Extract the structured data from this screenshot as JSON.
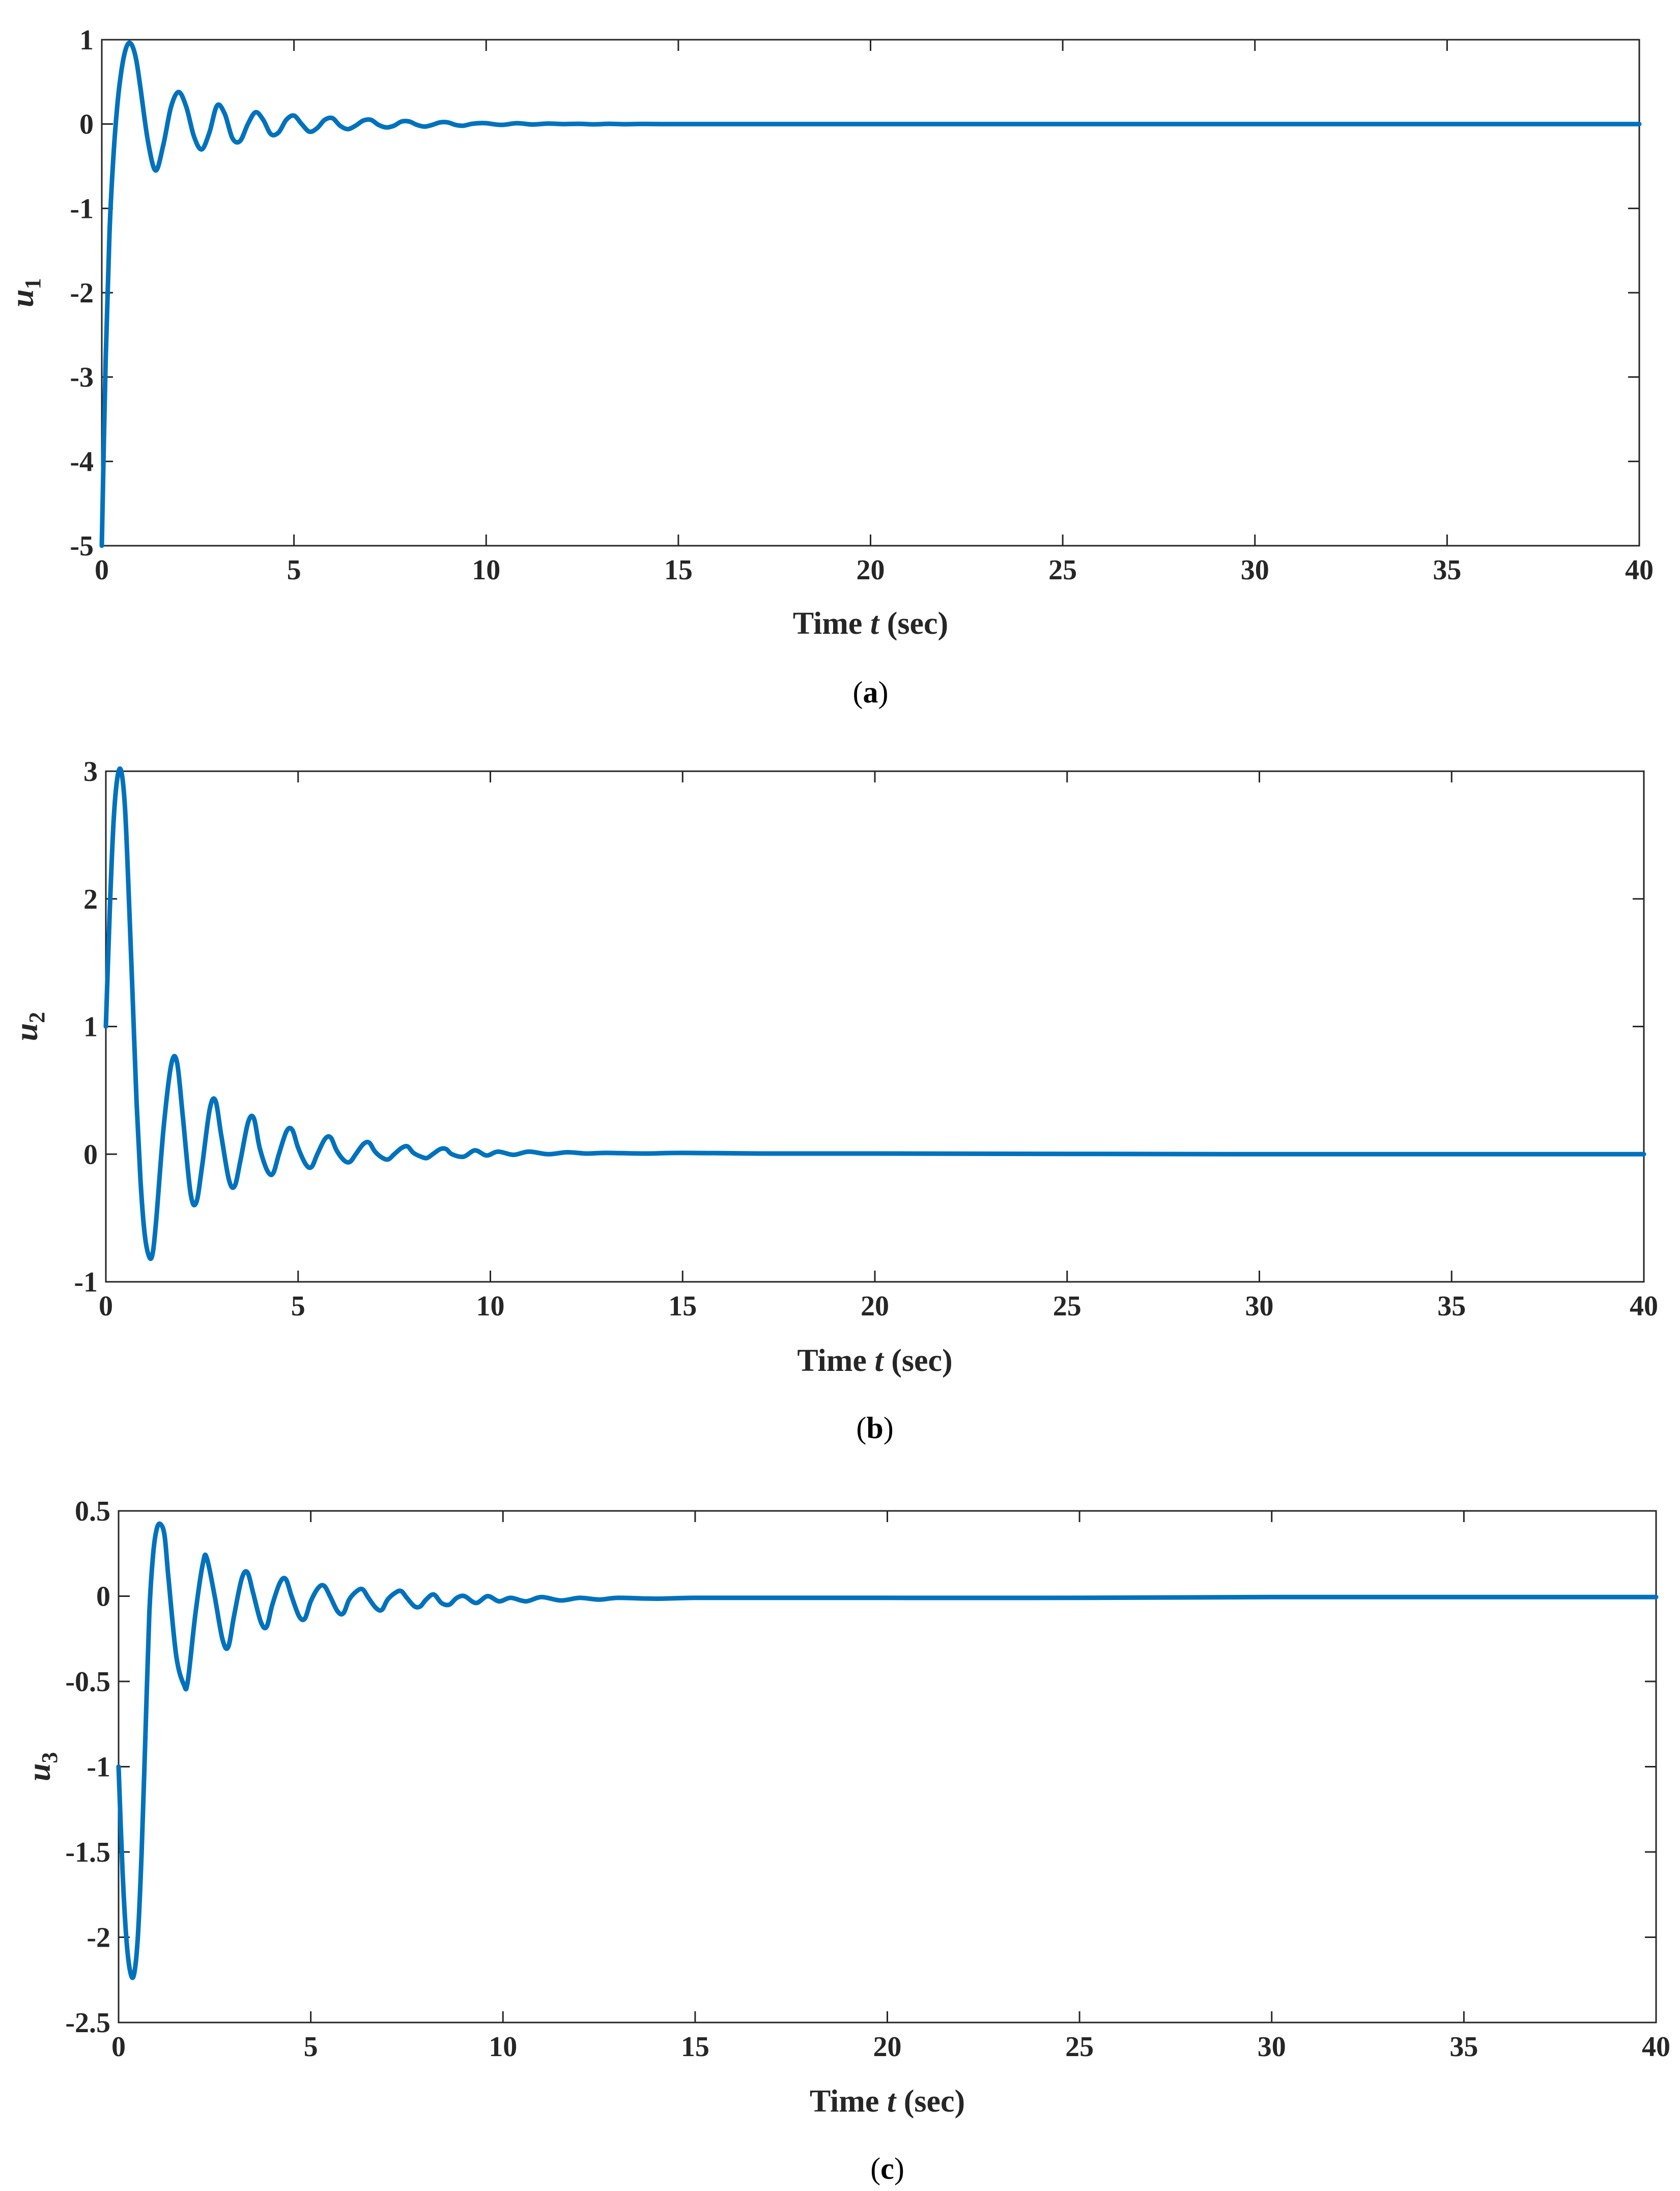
{
  "colors": {
    "line": "#0072BD",
    "axis": "#262626"
  },
  "chart_data": [
    {
      "type": "line",
      "panel": "a",
      "caption": "(a)",
      "xlabel": "Time t (sec)",
      "ylabel": "u1",
      "xlim": [
        0,
        40
      ],
      "ylim": [
        -5,
        1
      ],
      "xticks": [
        "0",
        "5",
        "10",
        "15",
        "20",
        "25",
        "30",
        "35",
        "40"
      ],
      "yticks": [
        "-5",
        "-4",
        "-3",
        "-2",
        "-1",
        "0",
        "1"
      ],
      "grid": false,
      "series": [
        {
          "x": [
            0,
            0.1,
            0.2,
            0.3,
            0.4,
            0.5,
            0.6,
            0.7,
            0.8,
            0.9,
            1.0,
            1.2,
            1.4,
            1.6,
            1.8,
            2.0,
            2.2,
            2.4,
            2.6,
            2.8,
            3.0,
            3.2,
            3.4,
            3.6,
            3.8,
            4.0,
            4.2,
            4.4,
            4.6,
            4.8,
            5.0,
            5.2,
            5.4,
            5.6,
            5.8,
            6.0,
            6.2,
            6.4,
            6.6,
            6.8,
            7.0,
            7.2,
            7.4,
            7.6,
            7.8,
            8.0,
            8.2,
            8.4,
            8.6,
            8.8,
            9.0,
            9.2,
            9.4,
            9.6,
            9.8,
            10.0,
            10.4,
            10.8,
            11.2,
            11.6,
            12.0,
            12.4,
            12.8,
            13.2,
            13.6,
            14.0,
            14.5,
            15.0,
            16,
            18,
            20,
            25,
            30,
            35,
            40
          ],
          "y": [
            -5.0,
            -2.8,
            -1.3,
            -0.4,
            0.2,
            0.6,
            0.85,
            0.96,
            0.92,
            0.75,
            0.45,
            -0.2,
            -0.55,
            -0.25,
            0.2,
            0.38,
            0.2,
            -0.15,
            -0.3,
            -0.1,
            0.22,
            0.12,
            -0.17,
            -0.2,
            0.0,
            0.14,
            0.05,
            -0.12,
            -0.1,
            0.05,
            0.1,
            0.0,
            -0.09,
            -0.05,
            0.05,
            0.07,
            -0.02,
            -0.06,
            -0.02,
            0.04,
            0.05,
            -0.01,
            -0.04,
            -0.02,
            0.03,
            0.03,
            -0.01,
            -0.03,
            -0.01,
            0.02,
            0.02,
            -0.01,
            -0.02,
            0.0,
            0.01,
            0.01,
            -0.01,
            0.01,
            -0.005,
            0.005,
            0.0,
            0.003,
            -0.003,
            0.002,
            -0.002,
            0.001,
            0.0,
            0.0,
            0.0,
            0.0,
            0.0,
            0.0,
            0.0,
            0.0,
            0.0
          ]
        }
      ]
    },
    {
      "type": "line",
      "panel": "b",
      "caption": "(b)",
      "xlabel": "Time t (sec)",
      "ylabel": "u2",
      "xlim": [
        0,
        40
      ],
      "ylim": [
        -1,
        3
      ],
      "xticks": [
        "0",
        "5",
        "10",
        "15",
        "20",
        "25",
        "30",
        "35",
        "40"
      ],
      "yticks": [
        "-1",
        "0",
        "1",
        "2",
        "3"
      ],
      "grid": false,
      "series": [
        {
          "x": [
            0,
            0.1,
            0.2,
            0.3,
            0.4,
            0.5,
            0.6,
            0.7,
            0.8,
            0.9,
            1.0,
            1.1,
            1.2,
            1.3,
            1.5,
            1.7,
            1.85,
            2.0,
            2.2,
            2.35,
            2.5,
            2.7,
            2.85,
            3.0,
            3.2,
            3.35,
            3.5,
            3.7,
            3.85,
            4.0,
            4.2,
            4.35,
            4.5,
            4.7,
            4.85,
            5.0,
            5.2,
            5.35,
            5.5,
            5.7,
            5.85,
            6.0,
            6.2,
            6.35,
            6.5,
            6.7,
            6.85,
            7.0,
            7.2,
            7.35,
            7.5,
            7.7,
            7.85,
            8.0,
            8.2,
            8.35,
            8.5,
            8.7,
            8.85,
            9.0,
            9.3,
            9.6,
            9.9,
            10.2,
            10.6,
            11.0,
            11.5,
            12.0,
            12.5,
            13.0,
            14,
            15,
            17,
            20,
            25,
            30,
            35,
            40
          ],
          "y": [
            1.0,
            1.9,
            2.6,
            2.95,
            3.0,
            2.7,
            2.0,
            1.2,
            0.4,
            -0.2,
            -0.6,
            -0.78,
            -0.8,
            -0.55,
            0.2,
            0.7,
            0.72,
            0.3,
            -0.3,
            -0.38,
            -0.1,
            0.35,
            0.42,
            0.15,
            -0.2,
            -0.25,
            -0.05,
            0.25,
            0.28,
            0.05,
            -0.13,
            -0.15,
            0.0,
            0.18,
            0.19,
            0.05,
            -0.08,
            -0.1,
            0.0,
            0.12,
            0.13,
            0.03,
            -0.05,
            -0.06,
            0.0,
            0.08,
            0.09,
            0.02,
            -0.03,
            -0.04,
            0.0,
            0.05,
            0.06,
            0.01,
            -0.02,
            -0.03,
            0.0,
            0.04,
            0.04,
            0.0,
            -0.02,
            0.03,
            -0.01,
            0.02,
            -0.005,
            0.02,
            0.0,
            0.015,
            0.005,
            0.01,
            0.005,
            0.01,
            0.005,
            0.005,
            0.002,
            0.0,
            0.0,
            0.0
          ]
        }
      ]
    },
    {
      "type": "line",
      "panel": "c",
      "caption": "(c)",
      "xlabel": "Time t (sec)",
      "ylabel": "u3",
      "xlim": [
        0,
        40
      ],
      "ylim": [
        -2.5,
        0.5
      ],
      "xticks": [
        "0",
        "5",
        "10",
        "15",
        "20",
        "25",
        "30",
        "35",
        "40"
      ],
      "yticks": [
        "-2.5",
        "-2",
        "-1.5",
        "-1",
        "-0.5",
        "0",
        "0.5"
      ],
      "grid": false,
      "series": [
        {
          "x": [
            0,
            0.1,
            0.2,
            0.3,
            0.4,
            0.5,
            0.6,
            0.7,
            0.8,
            0.9,
            1.0,
            1.1,
            1.2,
            1.3,
            1.5,
            1.7,
            1.8,
            2.0,
            2.2,
            2.3,
            2.5,
            2.7,
            2.85,
            3.0,
            3.2,
            3.35,
            3.5,
            3.7,
            3.85,
            4.0,
            4.2,
            4.35,
            4.5,
            4.7,
            4.85,
            5.0,
            5.2,
            5.35,
            5.5,
            5.7,
            5.85,
            6.0,
            6.2,
            6.35,
            6.5,
            6.7,
            6.85,
            7.0,
            7.2,
            7.35,
            7.5,
            7.7,
            7.85,
            8.0,
            8.2,
            8.4,
            8.6,
            8.8,
            9.0,
            9.3,
            9.6,
            9.9,
            10.2,
            10.6,
            11.0,
            11.5,
            12.0,
            12.5,
            13.0,
            14,
            15,
            17,
            20,
            25,
            30,
            35,
            40
          ],
          "y": [
            -1.0,
            -1.6,
            -2.0,
            -2.2,
            -2.22,
            -2.0,
            -1.5,
            -0.8,
            -0.1,
            0.25,
            0.4,
            0.42,
            0.35,
            0.1,
            -0.35,
            -0.52,
            -0.5,
            -0.1,
            0.2,
            0.22,
            0.0,
            -0.25,
            -0.3,
            -0.12,
            0.1,
            0.14,
            0.02,
            -0.15,
            -0.18,
            -0.05,
            0.08,
            0.1,
            0.0,
            -0.12,
            -0.13,
            -0.03,
            0.05,
            0.06,
            0.0,
            -0.09,
            -0.1,
            -0.02,
            0.03,
            0.04,
            -0.01,
            -0.07,
            -0.08,
            -0.02,
            0.02,
            0.03,
            -0.01,
            -0.06,
            -0.06,
            -0.02,
            0.01,
            -0.04,
            -0.05,
            -0.01,
            0.0,
            -0.04,
            0.0,
            -0.03,
            -0.01,
            -0.03,
            -0.005,
            -0.025,
            -0.01,
            -0.02,
            -0.01,
            -0.015,
            -0.01,
            -0.01,
            -0.01,
            -0.01,
            -0.005,
            -0.005,
            -0.005
          ]
        }
      ]
    }
  ]
}
